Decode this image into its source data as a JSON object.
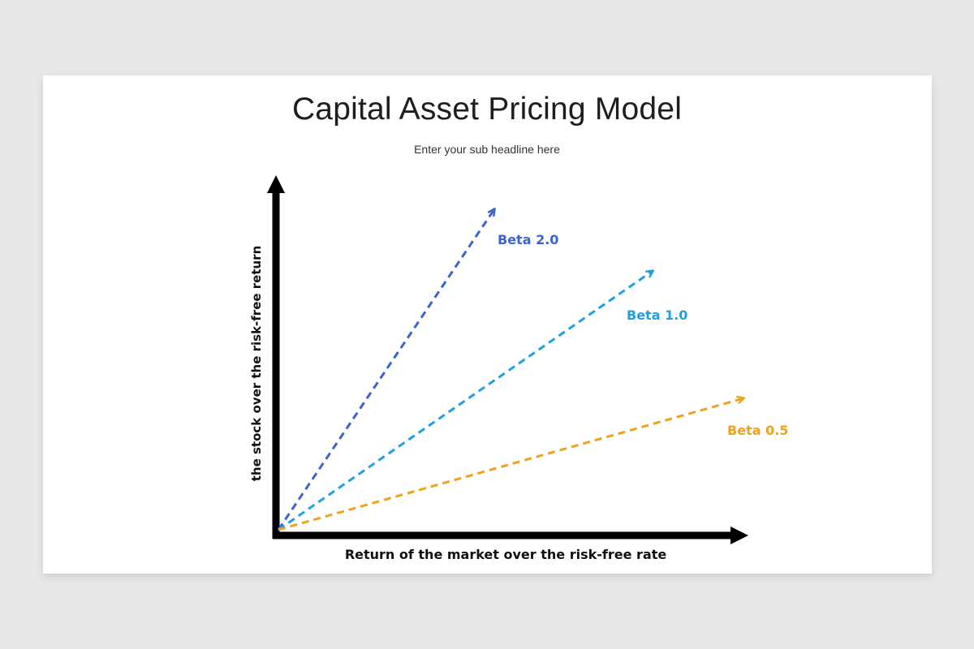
{
  "title": "Capital Asset Pricing Model",
  "subtitle": "Enter your sub headline here",
  "x_axis_label": "Return of the market over the risk-free rate",
  "y_axis_label": "the stock over the risk-free return",
  "lines": [
    {
      "label": "Beta 2.0",
      "beta": 2.0,
      "color": "#3c63cf"
    },
    {
      "label": "Beta 1.0",
      "beta": 1.0,
      "color": "#1fa0e3"
    },
    {
      "label": "Beta 0.5",
      "beta": 0.5,
      "color": "#f0a21c"
    }
  ]
}
